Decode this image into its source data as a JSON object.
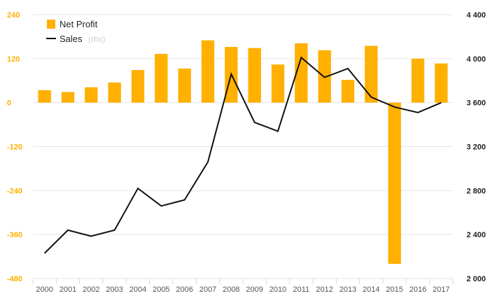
{
  "chart_data": {
    "type": "bar",
    "categories": [
      "2000",
      "2001",
      "2002",
      "2003",
      "2004",
      "2005",
      "2006",
      "2007",
      "2008",
      "2009",
      "2010",
      "2011",
      "2012",
      "2013",
      "2014",
      "2015",
      "2016",
      "2017"
    ],
    "series": [
      {
        "name": "Net Profit",
        "type": "bar",
        "axis": "left",
        "color": "#FFB000",
        "values": [
          34,
          29,
          42,
          55,
          89,
          133,
          93,
          170,
          152,
          149,
          104,
          162,
          143,
          62,
          155,
          -440,
          120,
          107
        ]
      },
      {
        "name": "Sales",
        "name_suffix": "(rhs)",
        "type": "line",
        "axis": "right",
        "color": "#111111",
        "values": [
          2230,
          2440,
          2385,
          2440,
          2820,
          2660,
          2715,
          3060,
          3860,
          3420,
          3340,
          4010,
          3830,
          3910,
          3650,
          3560,
          3510,
          3600
        ]
      }
    ],
    "y_left": {
      "min": -480,
      "max": 240,
      "ticks": [
        240,
        120,
        0,
        -120,
        -240,
        -360,
        -480
      ],
      "tick_labels": [
        "240",
        "120",
        "0",
        "-120",
        "-240",
        "-360",
        "-480"
      ],
      "color": "#FFB000"
    },
    "y_right": {
      "min": 2000,
      "max": 4400,
      "ticks": [
        4400,
        4000,
        3600,
        3200,
        2800,
        2400,
        2000
      ],
      "tick_labels": [
        "4 400",
        "4 000",
        "3 600",
        "3 200",
        "2 800",
        "2 400",
        "2 000"
      ]
    },
    "grid": true,
    "legend": "top-left"
  }
}
